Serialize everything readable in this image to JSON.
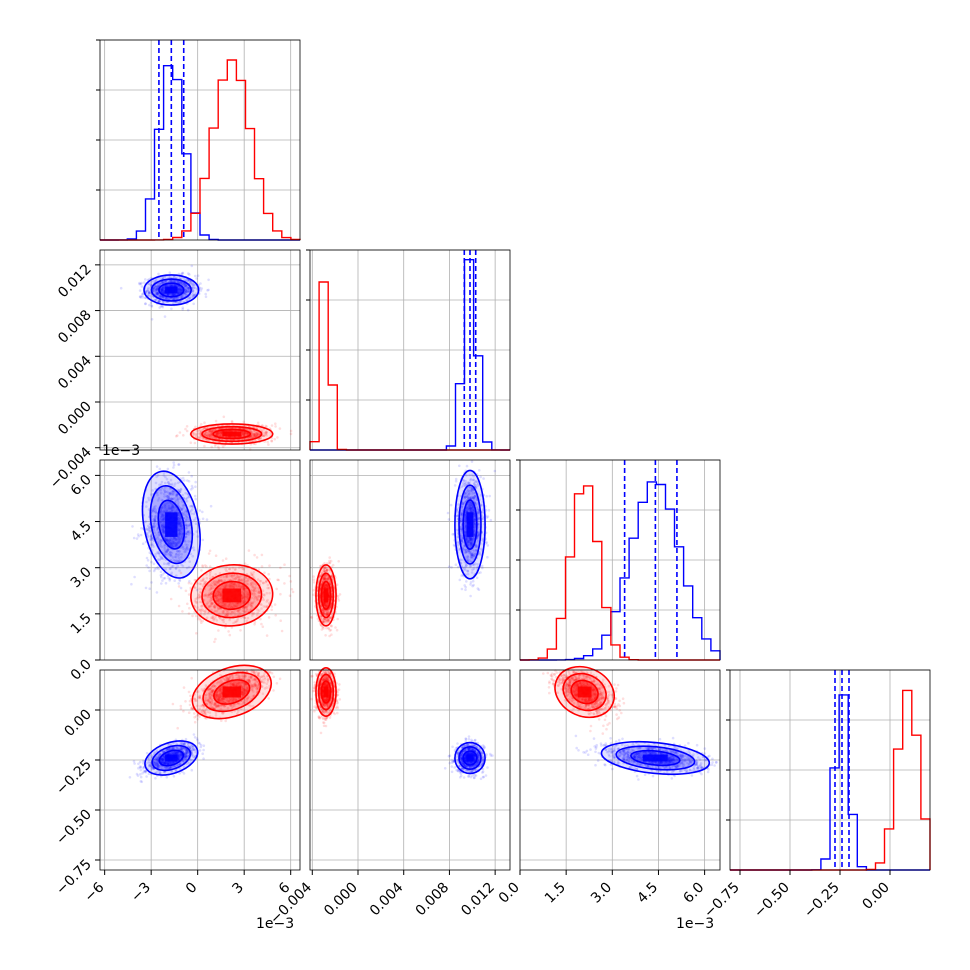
{
  "chart_data": {
    "type": "corner",
    "grid": true,
    "series": [
      {
        "color": "#0000ff",
        "params": {
          "p1": {
            "mean": -1.7,
            "sd": 0.8
          },
          "p2": {
            "mean": 0.0098,
            "sd": 0.0006
          },
          "p3": {
            "mean": 4.4,
            "sd": 0.8
          },
          "p4": {
            "mean": -0.24,
            "sd": 0.035
          }
        },
        "quantile_lines": {
          "p1": [
            -2.5,
            -1.7,
            -0.9
          ],
          "p2": [
            0.0093,
            0.0098,
            0.0103
          ],
          "p3": [
            3.4,
            4.4,
            5.1
          ],
          "p4": [
            -0.275,
            -0.24,
            -0.205
          ]
        }
      },
      {
        "color": "#ff0000",
        "params": {
          "p1": {
            "mean": 2.2,
            "sd": 1.2
          },
          "p2": {
            "mean": -0.0028,
            "sd": 0.0004
          },
          "p3": {
            "mean": 2.1,
            "sd": 0.45
          },
          "p4": {
            "mean": 0.09,
            "sd": 0.055
          }
        }
      }
    ],
    "panels": {
      "p1": {
        "range": [
          -6.3,
          6.6
        ],
        "ticks": [
          "−6",
          "−3",
          "0",
          "3",
          "6"
        ],
        "tick_values": [
          -6,
          -3,
          0,
          3,
          6
        ],
        "offset": "1e−3"
      },
      "p2": {
        "range": [
          -0.0042,
          0.0133
        ],
        "ticks": [
          "−0.004",
          "0.000",
          "0.004",
          "0.008",
          "0.012"
        ],
        "tick_values": [
          -0.004,
          0,
          0.004,
          0.008,
          0.012
        ]
      },
      "p3": {
        "range": [
          0.0,
          6.5
        ],
        "ticks": [
          "0.0",
          "1.5",
          "3.0",
          "4.5",
          "6.0"
        ],
        "tick_values": [
          0,
          1.5,
          3,
          4.5,
          6
        ],
        "offset": "1e−3"
      },
      "p4": {
        "range": [
          -0.8,
          0.2
        ],
        "ticks": [
          "−0.75",
          "−0.50",
          "−0.25",
          "0.00"
        ],
        "tick_values": [
          -0.75,
          -0.5,
          -0.25,
          0
        ]
      }
    },
    "y_tick_labels": {
      "p2": [
        "−0.004",
        "0.000",
        "0.004",
        "0.008",
        "0.012"
      ],
      "p3": [
        "0.0",
        "1.5",
        "3.0",
        "4.5",
        "6.0"
      ],
      "p4": [
        "−0.75",
        "−0.50",
        "−0.25",
        "0.00"
      ]
    },
    "offset_labels": [
      "1e−3",
      "1e−3",
      "1e−3"
    ]
  }
}
